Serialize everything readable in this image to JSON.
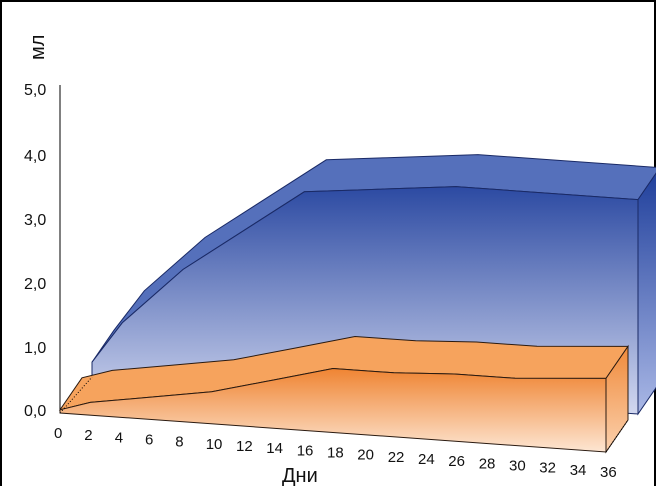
{
  "chart_data": {
    "type": "area",
    "ylabel": "мл",
    "xlabel": "Дни",
    "yticks": [
      "0,0",
      "1,0",
      "2,0",
      "3,0",
      "4,0",
      "5,0"
    ],
    "xticks": [
      "0",
      "2",
      "4",
      "6",
      "8",
      "10",
      "12",
      "14",
      "16",
      "18",
      "20",
      "22",
      "24",
      "26",
      "28",
      "30",
      "32",
      "34",
      "36"
    ],
    "ylim": [
      0,
      5
    ],
    "xlim": [
      0,
      36
    ],
    "grid": false,
    "style": "3d",
    "series": [
      {
        "color": "#2a4aa0",
        "x": [
          0,
          2,
          6,
          14,
          18,
          24,
          36
        ],
        "values": [
          0.2,
          0.85,
          1.75,
          3.1,
          3.2,
          3.35,
          3.35
        ]
      },
      {
        "color": "#f08a3a",
        "x": [
          0,
          2,
          6,
          10,
          14,
          18,
          22,
          26,
          30,
          36
        ],
        "values": [
          0.05,
          0.2,
          0.35,
          0.5,
          0.75,
          1.0,
          1.0,
          1.05,
          1.05,
          1.15
        ]
      }
    ]
  },
  "colors": {
    "back_series_top": "#2a4aa0",
    "back_series_bottom": "#d4daf1",
    "front_series_top": "#f08a3a",
    "front_series_bottom": "#fde2cc"
  }
}
